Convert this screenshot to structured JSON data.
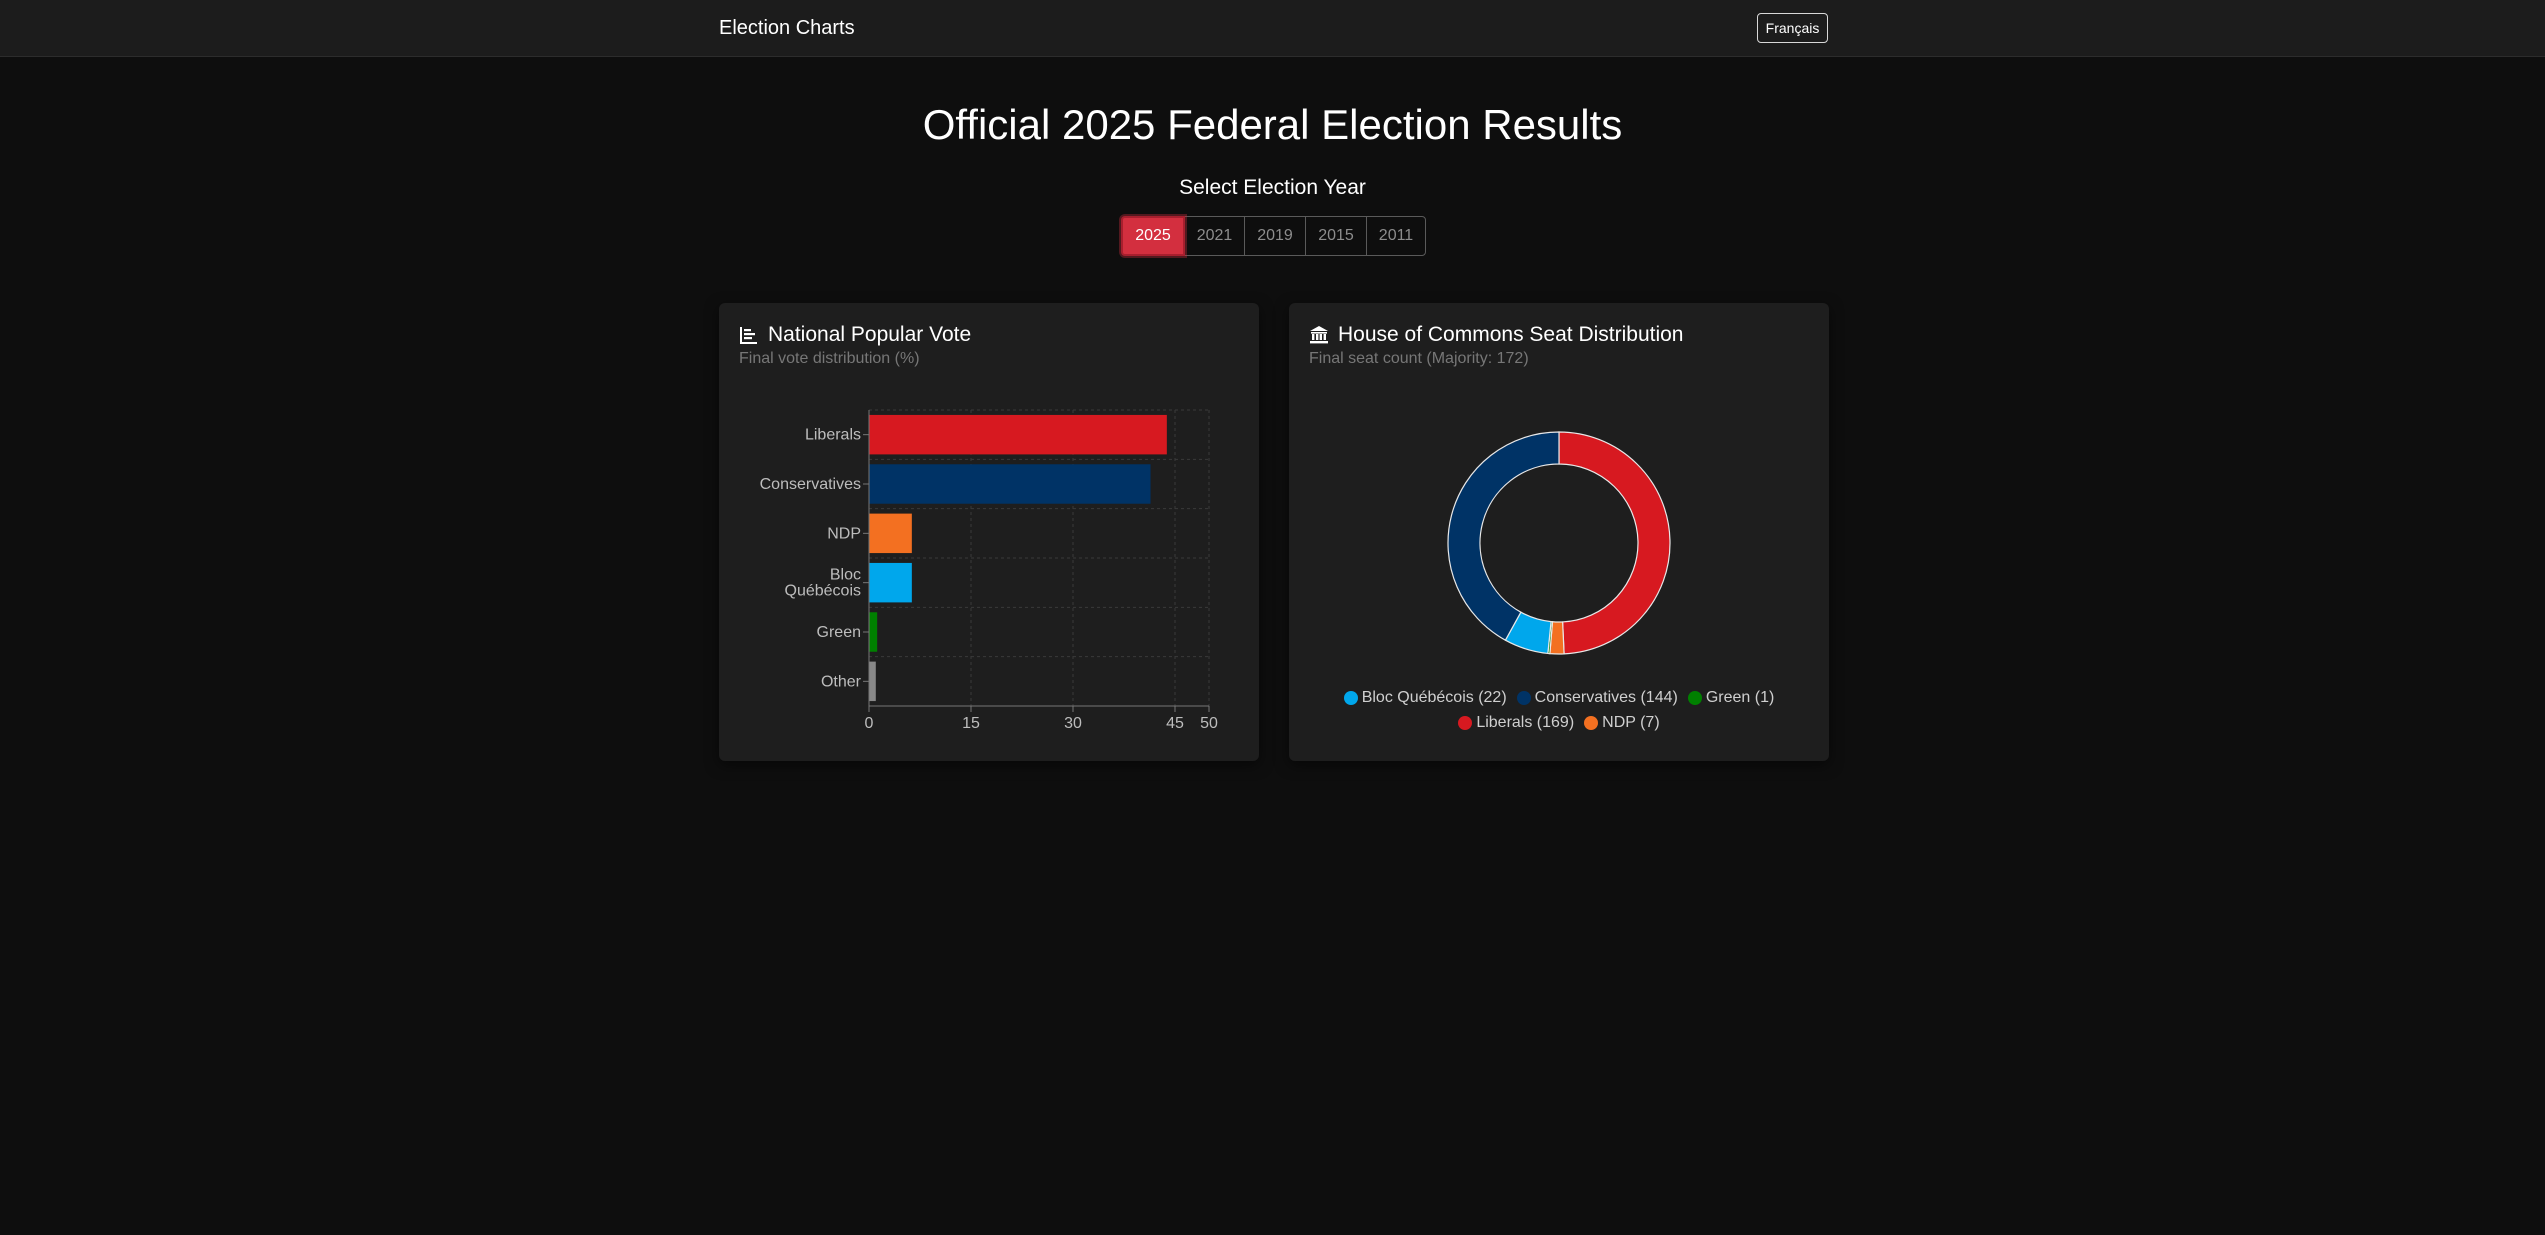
{
  "nav": {
    "brand": "Election Charts",
    "language_button": "Français"
  },
  "header": {
    "title": "Official 2025 Federal Election Results",
    "year_label": "Select Election Year"
  },
  "years": [
    {
      "label": "2025",
      "active": true
    },
    {
      "label": "2021",
      "active": false
    },
    {
      "label": "2019",
      "active": false
    },
    {
      "label": "2015",
      "active": false
    },
    {
      "label": "2011",
      "active": false
    }
  ],
  "popular_vote": {
    "title": "National Popular Vote",
    "subtitle": "Final vote distribution (%)",
    "icon": "bar-chart-icon"
  },
  "seats": {
    "title": "House of Commons Seat Distribution",
    "subtitle": "Final seat count (Majority: 172)",
    "icon": "parliament-building-icon"
  },
  "chart_data": [
    {
      "type": "bar",
      "orientation": "horizontal",
      "categories": [
        [
          "Liberals"
        ],
        [
          "Conservatives"
        ],
        [
          "NDP"
        ],
        [
          "Bloc",
          "Québécois"
        ],
        [
          "Green"
        ],
        [
          "Other"
        ]
      ],
      "values": [
        43.8,
        41.4,
        6.3,
        6.3,
        1.2,
        1.0
      ],
      "colors": [
        "#d71920",
        "#003366",
        "#f37021",
        "#00a7ec",
        "#008000",
        "#888888"
      ],
      "xticks": [
        0,
        15,
        30,
        45,
        50
      ],
      "xlim": [
        0,
        50
      ],
      "grid": true
    },
    {
      "type": "pie",
      "donut": true,
      "slices": [
        {
          "label": "Liberals",
          "value": 169,
          "color": "#d71920"
        },
        {
          "label": "NDP",
          "value": 7,
          "color": "#f37021"
        },
        {
          "label": "Green",
          "value": 1,
          "color": "#008000"
        },
        {
          "label": "Bloc Québécois",
          "value": 22,
          "color": "#00a7ec"
        },
        {
          "label": "Conservatives",
          "value": 144,
          "color": "#003366"
        }
      ],
      "legend": [
        {
          "text": "Bloc Québécois (22)",
          "color": "#00a7ec"
        },
        {
          "text": "Conservatives (144)",
          "color": "#003366"
        },
        {
          "text": "Green (1)",
          "color": "#008000"
        },
        {
          "text": "Liberals (169)",
          "color": "#d71920"
        },
        {
          "text": "NDP (7)",
          "color": "#f37021"
        }
      ],
      "legend_position": "bottom"
    }
  ]
}
